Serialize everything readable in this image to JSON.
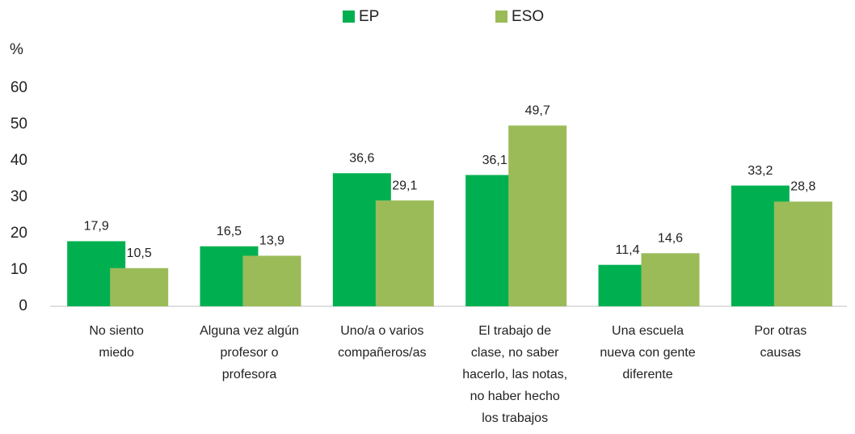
{
  "chart_data": {
    "type": "bar",
    "y_label": "%",
    "categories": [
      [
        "No siento",
        "miedo"
      ],
      [
        "Alguna vez algún",
        "profesor o",
        "profesora"
      ],
      [
        "Uno/a o varios",
        "compañeros/as"
      ],
      [
        "El trabajo de",
        "clase, no saber",
        "hacerlo, las notas,",
        "no haber hecho",
        "los trabajos"
      ],
      [
        "Una escuela",
        "nueva con gente",
        "diferente"
      ],
      [
        "Por otras",
        "causas"
      ]
    ],
    "series": [
      {
        "name": "EP",
        "color": "#00b050",
        "values": [
          17.9,
          16.5,
          36.6,
          36.1,
          11.4,
          33.2
        ],
        "value_labels": [
          "17,9",
          "16,5",
          "36,6",
          "36,1",
          "11,4",
          "33,2"
        ]
      },
      {
        "name": "ESO",
        "color": "#9bbb59",
        "values": [
          10.5,
          13.9,
          29.1,
          49.7,
          14.6,
          28.8
        ],
        "value_labels": [
          "10,5",
          "13,9",
          "29,1",
          "49,7",
          "14,6",
          "28,8"
        ]
      }
    ],
    "ylim": [
      0,
      60
    ],
    "yticks": [
      0,
      10,
      20,
      30,
      40,
      50,
      60
    ],
    "grid": false,
    "legend": "top"
  }
}
